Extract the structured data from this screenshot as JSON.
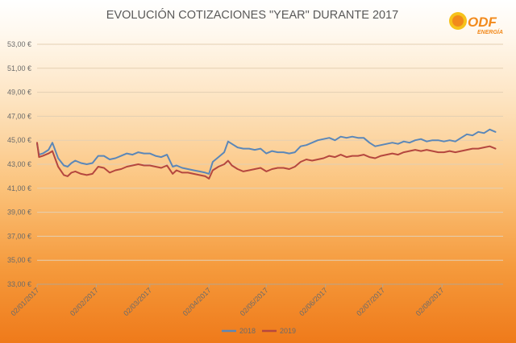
{
  "chart_data": {
    "type": "line",
    "title": "EVOLUCIÓN COTIZACIONES \"YEAR\" DURANTE 2017",
    "xlabel": "",
    "ylabel": "",
    "ylim": [
      33,
      53
    ],
    "y_ticks": [
      "53,00 €",
      "51,00 €",
      "49,00 €",
      "47,00 €",
      "45,00 €",
      "43,00 €",
      "41,00 €",
      "39,00 €",
      "37,00 €",
      "35,00 €",
      "33,00 €"
    ],
    "x_ticks": [
      "02/01/2017",
      "02/02/2017",
      "02/03/2017",
      "02/04/2017",
      "02/05/2017",
      "02/06/2017",
      "02/07/2017",
      "02/08/2017"
    ],
    "grid": true,
    "legend_position": "bottom",
    "series": [
      {
        "name": "2018",
        "color": "#5b87b8",
        "x": [
          "02/01/2017",
          "03/01/2017",
          "05/01/2017",
          "08/01/2017",
          "10/01/2017",
          "13/01/2017",
          "16/01/2017",
          "18/01/2017",
          "20/01/2017",
          "22/01/2017",
          "25/01/2017",
          "28/01/2017",
          "31/01/2017",
          "03/02/2017",
          "06/02/2017",
          "09/02/2017",
          "12/02/2017",
          "15/02/2017",
          "18/02/2017",
          "21/02/2017",
          "24/02/2017",
          "27/02/2017",
          "02/03/2017",
          "05/03/2017",
          "08/03/2017",
          "11/03/2017",
          "14/03/2017",
          "16/03/2017",
          "19/03/2017",
          "22/03/2017",
          "25/03/2017",
          "28/03/2017",
          "31/03/2017",
          "02/04/2017",
          "04/04/2017",
          "07/04/2017",
          "10/04/2017",
          "12/04/2017",
          "14/04/2017",
          "17/04/2017",
          "20/04/2017",
          "23/04/2017",
          "26/04/2017",
          "29/04/2017",
          "02/05/2017",
          "05/05/2017",
          "08/05/2017",
          "11/05/2017",
          "14/05/2017",
          "17/05/2017",
          "20/05/2017",
          "23/05/2017",
          "26/05/2017",
          "29/05/2017",
          "01/06/2017",
          "04/06/2017",
          "07/06/2017",
          "10/06/2017",
          "13/06/2017",
          "16/06/2017",
          "19/06/2017",
          "22/06/2017",
          "25/06/2017",
          "28/06/2017",
          "01/07/2017",
          "04/07/2017",
          "07/07/2017",
          "10/07/2017",
          "13/07/2017",
          "16/07/2017",
          "19/07/2017",
          "22/07/2017",
          "25/07/2017",
          "28/07/2017",
          "31/07/2017",
          "03/08/2017",
          "06/08/2017",
          "09/08/2017",
          "12/08/2017",
          "15/08/2017",
          "18/08/2017",
          "21/08/2017",
          "24/08/2017",
          "27/08/2017",
          "30/08/2017"
        ],
        "values": [
          44.7,
          43.8,
          43.9,
          44.2,
          44.8,
          43.5,
          42.9,
          42.8,
          43.1,
          43.3,
          43.1,
          43.0,
          43.1,
          43.7,
          43.7,
          43.4,
          43.5,
          43.7,
          43.9,
          43.8,
          44.0,
          43.9,
          43.9,
          43.7,
          43.6,
          43.8,
          42.8,
          42.9,
          42.7,
          42.6,
          42.5,
          42.4,
          42.3,
          42.2,
          43.2,
          43.6,
          44.0,
          44.9,
          44.7,
          44.4,
          44.3,
          44.3,
          44.2,
          44.3,
          43.9,
          44.1,
          44.0,
          44.0,
          43.9,
          44.0,
          44.5,
          44.6,
          44.8,
          45.0,
          45.1,
          45.2,
          45.0,
          45.3,
          45.2,
          45.3,
          45.2,
          45.2,
          44.8,
          44.5,
          44.6,
          44.7,
          44.8,
          44.7,
          44.9,
          44.8,
          45.0,
          45.1,
          44.9,
          45.0,
          45.0,
          44.9,
          45.0,
          44.9,
          45.2,
          45.5,
          45.4,
          45.7,
          45.6,
          45.9,
          45.7
        ]
      },
      {
        "name": "2019",
        "color": "#b5473f",
        "x": [
          "02/01/2017",
          "03/01/2017",
          "05/01/2017",
          "08/01/2017",
          "10/01/2017",
          "13/01/2017",
          "16/01/2017",
          "18/01/2017",
          "20/01/2017",
          "22/01/2017",
          "25/01/2017",
          "28/01/2017",
          "31/01/2017",
          "03/02/2017",
          "06/02/2017",
          "09/02/2017",
          "12/02/2017",
          "15/02/2017",
          "18/02/2017",
          "21/02/2017",
          "24/02/2017",
          "27/02/2017",
          "02/03/2017",
          "05/03/2017",
          "08/03/2017",
          "11/03/2017",
          "14/03/2017",
          "16/03/2017",
          "19/03/2017",
          "22/03/2017",
          "25/03/2017",
          "28/03/2017",
          "31/03/2017",
          "02/04/2017",
          "04/04/2017",
          "07/04/2017",
          "10/04/2017",
          "12/04/2017",
          "14/04/2017",
          "17/04/2017",
          "20/04/2017",
          "23/04/2017",
          "26/04/2017",
          "29/04/2017",
          "02/05/2017",
          "05/05/2017",
          "08/05/2017",
          "11/05/2017",
          "14/05/2017",
          "17/05/2017",
          "20/05/2017",
          "23/05/2017",
          "26/05/2017",
          "29/05/2017",
          "01/06/2017",
          "04/06/2017",
          "07/06/2017",
          "10/06/2017",
          "13/06/2017",
          "16/06/2017",
          "19/06/2017",
          "22/06/2017",
          "25/06/2017",
          "28/06/2017",
          "01/07/2017",
          "04/07/2017",
          "07/07/2017",
          "10/07/2017",
          "13/07/2017",
          "16/07/2017",
          "19/07/2017",
          "22/07/2017",
          "25/07/2017",
          "28/07/2017",
          "31/07/2017",
          "03/08/2017",
          "06/08/2017",
          "09/08/2017",
          "12/08/2017",
          "15/08/2017",
          "18/08/2017",
          "21/08/2017",
          "24/08/2017",
          "27/08/2017",
          "30/08/2017"
        ],
        "values": [
          44.8,
          43.6,
          43.7,
          43.9,
          44.1,
          42.8,
          42.1,
          42.0,
          42.3,
          42.4,
          42.2,
          42.1,
          42.2,
          42.8,
          42.7,
          42.3,
          42.5,
          42.6,
          42.8,
          42.9,
          43.0,
          42.9,
          42.9,
          42.8,
          42.7,
          42.9,
          42.2,
          42.5,
          42.3,
          42.3,
          42.2,
          42.1,
          42.0,
          41.8,
          42.5,
          42.8,
          43.0,
          43.3,
          42.9,
          42.6,
          42.4,
          42.5,
          42.6,
          42.7,
          42.4,
          42.6,
          42.7,
          42.7,
          42.6,
          42.8,
          43.2,
          43.4,
          43.3,
          43.4,
          43.5,
          43.7,
          43.6,
          43.8,
          43.6,
          43.7,
          43.7,
          43.8,
          43.6,
          43.5,
          43.7,
          43.8,
          43.9,
          43.8,
          44.0,
          44.1,
          44.2,
          44.1,
          44.2,
          44.1,
          44.0,
          44.0,
          44.1,
          44.0,
          44.1,
          44.2,
          44.3,
          44.3,
          44.4,
          44.5,
          44.3
        ]
      }
    ]
  },
  "logo": {
    "text": "ODF",
    "subtext": "ENERGÍA",
    "colors": {
      "orange": "#f28a1c",
      "yellow": "#f6c21b"
    }
  },
  "colors": {
    "grid": "#e3cfb3",
    "axis": "#b7a58c"
  }
}
